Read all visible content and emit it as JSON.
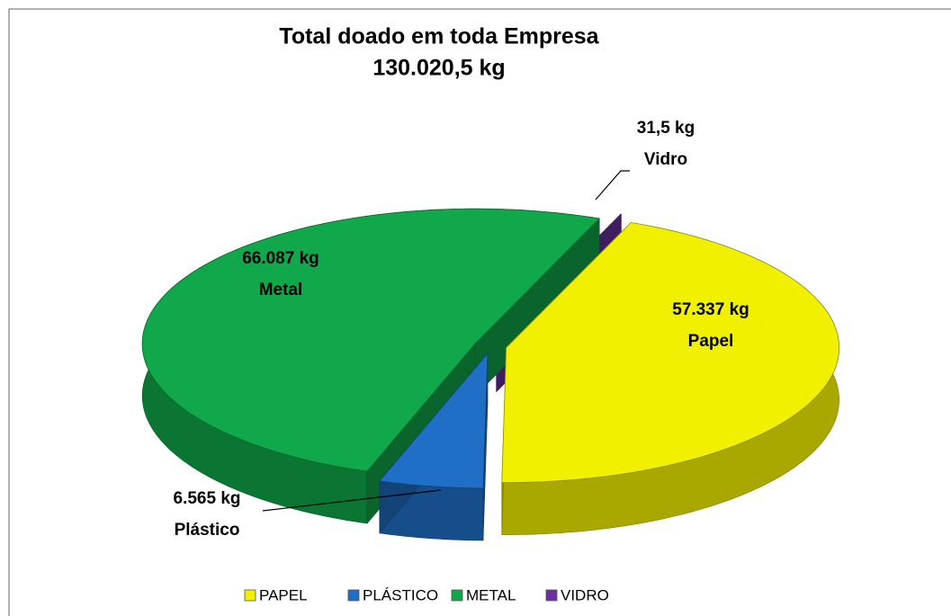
{
  "chart_data": {
    "type": "pie",
    "title": "Total doado em toda Empresa",
    "subtitle": "130.020,5 kg",
    "categories": [
      "PAPEL",
      "PLÁSTICO",
      "METAL",
      "VIDRO"
    ],
    "values": [
      57337,
      6565,
      66087,
      31.5
    ],
    "value_labels": [
      "57.337 kg",
      "6.565 kg",
      "66.087 kg",
      "31,5 kg"
    ],
    "data_label_names": [
      "Papel",
      "Plástico",
      "Metal",
      "Vidro"
    ],
    "colors": [
      "#f0f000",
      "#1f6fc6",
      "#10a84a",
      "#6b2fa0"
    ],
    "legend": "bottom"
  }
}
